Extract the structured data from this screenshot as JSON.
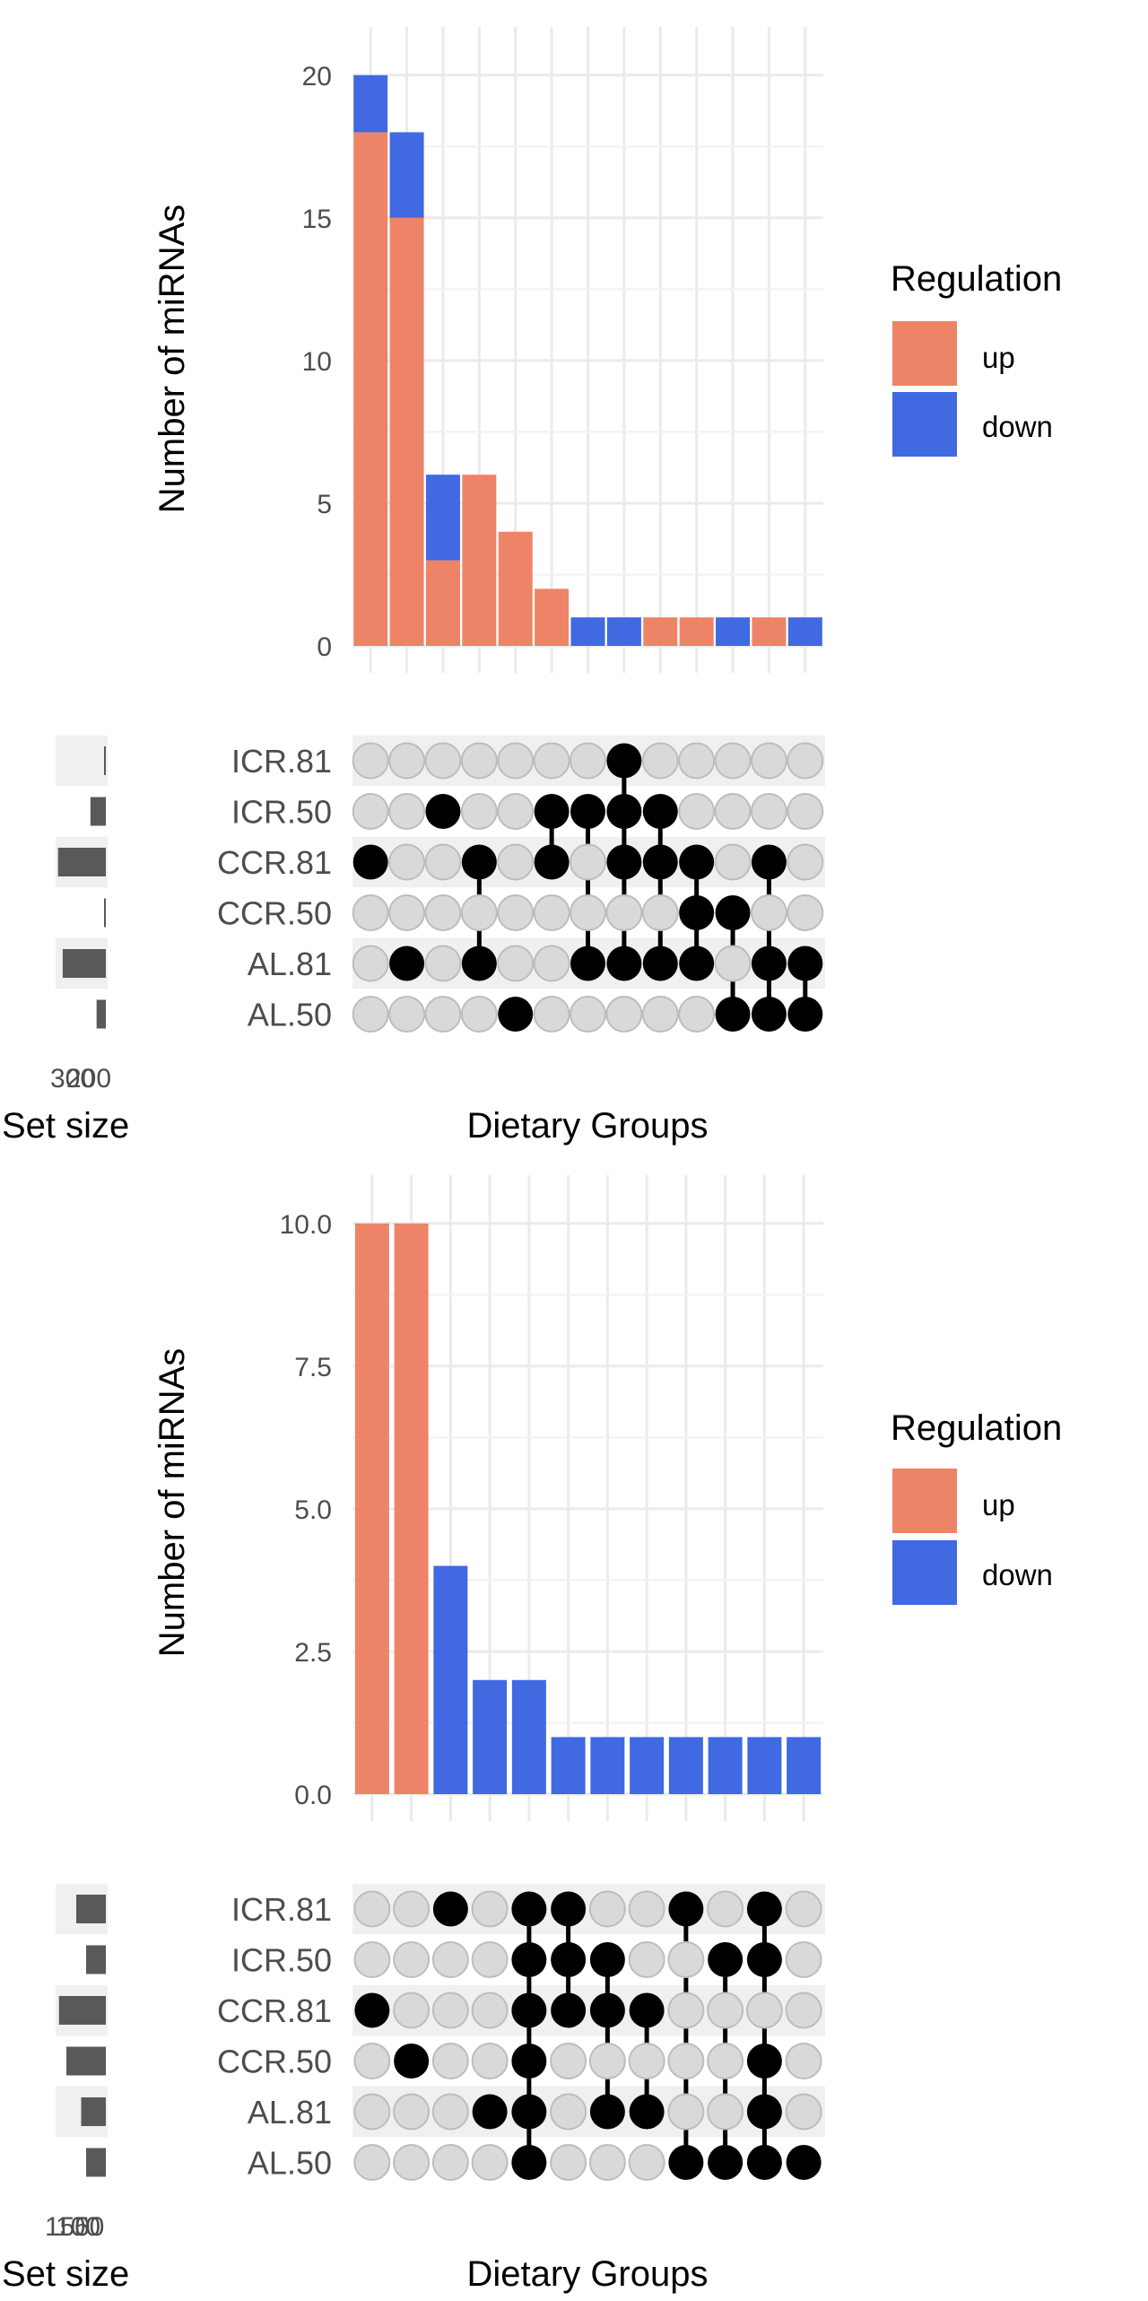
{
  "chart_data": [
    {
      "type": "bar",
      "subtype": "upset-stacked",
      "ylabel": "Number of miRNAs",
      "xlabel": "Dietary Groups",
      "set_size_label": "Set size",
      "set_size_ticks": [
        "300",
        "200"
      ],
      "ylim": [
        0,
        21
      ],
      "yticks": [
        "0",
        "5",
        "10",
        "15",
        "20"
      ],
      "ytick_values": [
        0,
        5,
        10,
        15,
        20
      ],
      "grid": true,
      "legend": {
        "title": "Regulation",
        "position": "right"
      },
      "series": [
        {
          "name": "up",
          "color": "#EE8467",
          "values": [
            18,
            15,
            3,
            6,
            4,
            2,
            0,
            0,
            1,
            1,
            0,
            1,
            0
          ]
        },
        {
          "name": "down",
          "color": "#4169E1",
          "values": [
            2,
            3,
            3,
            0,
            0,
            0,
            1,
            1,
            0,
            0,
            1,
            0,
            1
          ]
        }
      ],
      "sets": [
        "ICR.81",
        "ICR.50",
        "CCR.81",
        "CCR.50",
        "AL.81",
        "AL.50"
      ],
      "set_sizes": [
        10,
        100,
        310,
        5,
        280,
        60
      ],
      "set_size_max": 320,
      "intersections": [
        [
          "CCR.81"
        ],
        [
          "AL.81"
        ],
        [
          "ICR.50"
        ],
        [
          "CCR.81",
          "AL.81"
        ],
        [
          "AL.50"
        ],
        [
          "ICR.50",
          "CCR.81"
        ],
        [
          "ICR.50",
          "AL.81"
        ],
        [
          "ICR.81",
          "ICR.50",
          "CCR.81",
          "AL.81"
        ],
        [
          "ICR.50",
          "CCR.81",
          "AL.81"
        ],
        [
          "CCR.81",
          "CCR.50",
          "AL.81"
        ],
        [
          "CCR.50",
          "AL.50"
        ],
        [
          "CCR.81",
          "AL.81",
          "AL.50"
        ],
        [
          "AL.81",
          "AL.50"
        ]
      ]
    },
    {
      "type": "bar",
      "subtype": "upset-stacked",
      "ylabel": "Number of miRNAs",
      "xlabel": "Dietary Groups",
      "set_size_label": "Set size",
      "set_size_ticks": [
        "150",
        "100",
        "50"
      ],
      "ylim": [
        0,
        10.5
      ],
      "yticks": [
        "0.0",
        "2.5",
        "5.0",
        "7.5",
        "10.0"
      ],
      "ytick_values": [
        0,
        2.5,
        5,
        7.5,
        10
      ],
      "grid": true,
      "legend": {
        "title": "Regulation",
        "position": "right"
      },
      "series": [
        {
          "name": "up",
          "color": "#EE8467",
          "values": [
            10,
            10,
            0,
            0,
            0,
            0,
            0,
            0,
            0,
            0,
            0,
            0
          ]
        },
        {
          "name": "down",
          "color": "#4169E1",
          "values": [
            0,
            0,
            4,
            2,
            2,
            1,
            1,
            1,
            1,
            1,
            1,
            1
          ]
        }
      ],
      "sets": [
        "ICR.81",
        "ICR.50",
        "CCR.81",
        "CCR.50",
        "AL.81",
        "AL.50"
      ],
      "set_sizes": [
        60,
        40,
        95,
        80,
        50,
        40
      ],
      "set_size_max": 100,
      "intersections": [
        [
          "CCR.81"
        ],
        [
          "CCR.50"
        ],
        [
          "ICR.81"
        ],
        [
          "AL.81"
        ],
        [
          "ICR.81",
          "ICR.50",
          "CCR.81",
          "CCR.50",
          "AL.81",
          "AL.50"
        ],
        [
          "ICR.81",
          "ICR.50",
          "CCR.81"
        ],
        [
          "ICR.50",
          "CCR.81",
          "AL.81"
        ],
        [
          "CCR.81",
          "AL.81"
        ],
        [
          "ICR.81",
          "AL.50"
        ],
        [
          "ICR.50",
          "AL.50"
        ],
        [
          "ICR.81",
          "ICR.50",
          "CCR.50",
          "AL.81",
          "AL.50"
        ],
        [
          "AL.50"
        ]
      ]
    }
  ]
}
